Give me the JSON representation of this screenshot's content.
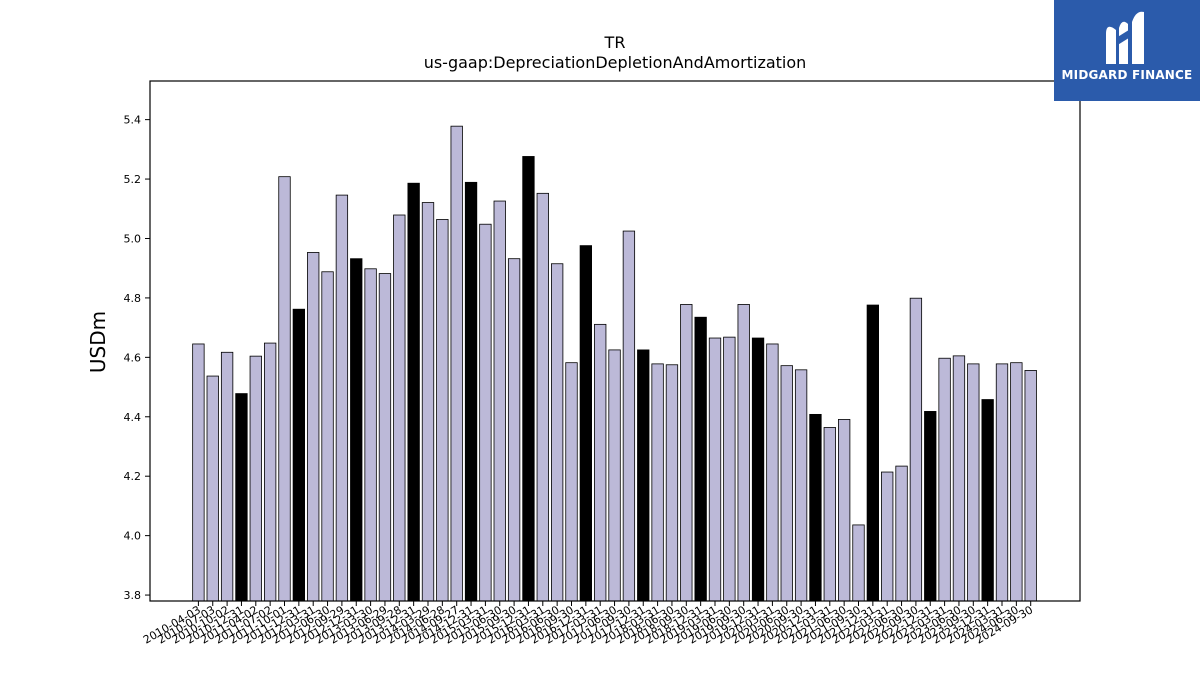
{
  "logo": {
    "text": "MIDGARD FINANCE",
    "background": "#2b5bab",
    "icon": "midgard-m-logo-icon"
  },
  "chart_data": {
    "type": "bar",
    "title": "TR",
    "subtitle": "us-gaap:DepreciationDepletionAndAmortization",
    "ylabel": "USDm",
    "xlabel": "",
    "ylim": [
      3.78,
      5.53
    ],
    "yticks": [
      3.8,
      4.0,
      4.2,
      4.4,
      4.6,
      4.8,
      5.0,
      5.2,
      5.4
    ],
    "grid": false,
    "colors": {
      "quarter": "#bcb9d8",
      "annual": "#000000",
      "edge": "#000000"
    },
    "categories": [
      "2010-04-03",
      "2010-07-03",
      "2010-10-02",
      "2010-12-31",
      "2011-04-02",
      "2011-07-02",
      "2011-10-01",
      "2011-12-31",
      "2012-03-31",
      "2012-06-30",
      "2012-09-29",
      "2012-12-31",
      "2013-03-30",
      "2013-06-29",
      "2013-09-28",
      "2013-12-31",
      "2014-03-29",
      "2014-06-28",
      "2014-09-27",
      "2014-12-31",
      "2015-03-31",
      "2015-06-30",
      "2015-09-30",
      "2015-12-31",
      "2016-03-31",
      "2016-06-30",
      "2016-09-30",
      "2016-12-31",
      "2017-03-31",
      "2017-06-30",
      "2017-09-30",
      "2017-12-31",
      "2018-03-31",
      "2018-06-30",
      "2018-09-30",
      "2018-12-31",
      "2019-03-31",
      "2019-06-30",
      "2019-09-30",
      "2019-12-31",
      "2020-03-31",
      "2020-06-30",
      "2020-09-30",
      "2020-12-31",
      "2021-03-31",
      "2021-06-30",
      "2021-09-30",
      "2021-12-31",
      "2022-03-31",
      "2022-06-30",
      "2022-09-30",
      "2022-12-31",
      "2023-03-31",
      "2023-06-30",
      "2023-09-30",
      "2023-12-31",
      "2024-03-31",
      "2024-06-30",
      "2024-09-30"
    ],
    "values": [
      4.645,
      4.537,
      4.617,
      4.478,
      4.604,
      4.648,
      5.208,
      4.762,
      4.953,
      4.888,
      5.146,
      4.932,
      4.898,
      4.882,
      5.079,
      5.186,
      5.121,
      5.064,
      5.378,
      5.189,
      5.048,
      5.126,
      4.932,
      5.276,
      5.152,
      4.915,
      4.582,
      4.976,
      4.711,
      4.625,
      5.025,
      4.625,
      4.578,
      4.575,
      4.778,
      4.735,
      4.665,
      4.668,
      4.778,
      4.665,
      4.645,
      4.572,
      4.558,
      4.408,
      4.364,
      4.391,
      4.036,
      4.776,
      4.214,
      4.234,
      4.799,
      4.418,
      4.597,
      4.605,
      4.578,
      4.458,
      4.578,
      4.582,
      4.556
    ],
    "annual": [
      false,
      false,
      false,
      true,
      false,
      false,
      false,
      true,
      false,
      false,
      false,
      true,
      false,
      false,
      false,
      true,
      false,
      false,
      false,
      true,
      false,
      false,
      false,
      true,
      false,
      false,
      false,
      true,
      false,
      false,
      false,
      true,
      false,
      false,
      false,
      true,
      false,
      false,
      false,
      true,
      false,
      false,
      false,
      true,
      false,
      false,
      false,
      true,
      false,
      false,
      false,
      true,
      false,
      false,
      false,
      true,
      false,
      false,
      false
    ]
  }
}
